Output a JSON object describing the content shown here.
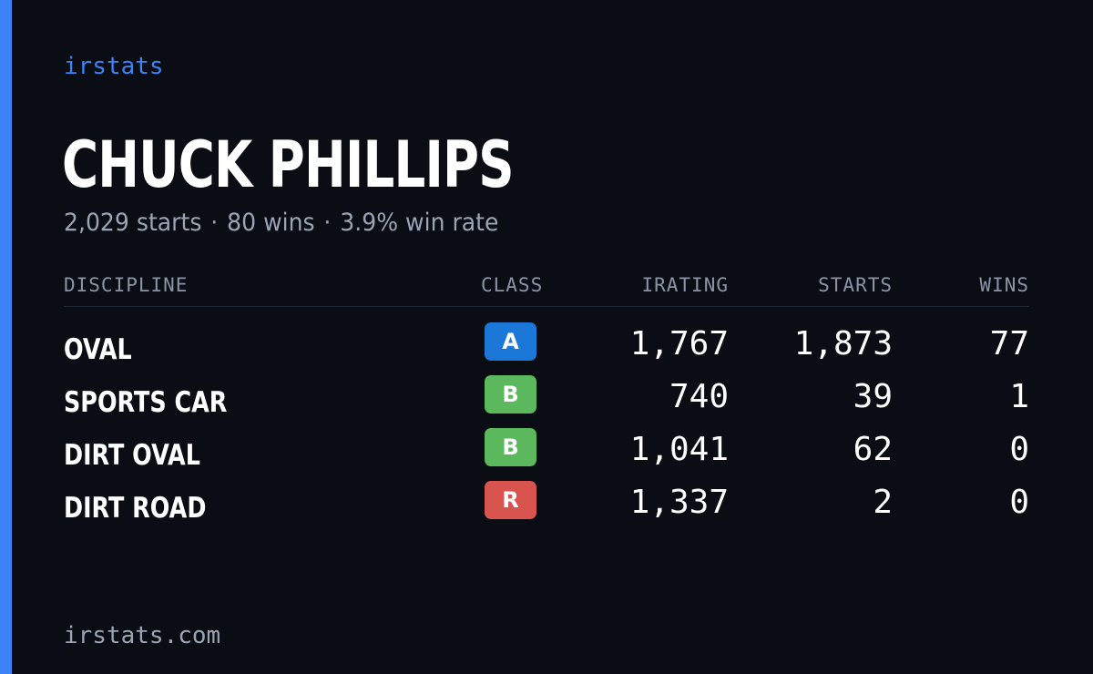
{
  "brand": "irstats",
  "driver": {
    "name": "CHUCK PHILLIPS",
    "starts_text": "2,029 starts",
    "wins_text": "80 wins",
    "win_rate_text": "3.9% win rate",
    "separator": "·"
  },
  "table": {
    "headers": {
      "discipline": "DISCIPLINE",
      "class": "CLASS",
      "irating": "IRATING",
      "starts": "STARTS",
      "wins": "WINS"
    },
    "rows": [
      {
        "discipline": "OVAL",
        "class": "A",
        "class_color": "#1c78d8",
        "irating": "1,767",
        "starts": "1,873",
        "wins": "77"
      },
      {
        "discipline": "SPORTS CAR",
        "class": "B",
        "class_color": "#5cb85c",
        "irating": "740",
        "starts": "39",
        "wins": "1"
      },
      {
        "discipline": "DIRT OVAL",
        "class": "B",
        "class_color": "#5cb85c",
        "irating": "1,041",
        "starts": "62",
        "wins": "0"
      },
      {
        "discipline": "DIRT ROAD",
        "class": "R",
        "class_color": "#d9534f",
        "irating": "1,337",
        "starts": "2",
        "wins": "0"
      }
    ]
  },
  "footer": {
    "site": "irstats.com"
  },
  "colors": {
    "background": "#0a0d14",
    "accent": "#3b82f6",
    "muted_text": "#9aa4b4",
    "class_a": "#1c78d8",
    "class_b": "#5cb85c",
    "class_r": "#d9534f"
  }
}
